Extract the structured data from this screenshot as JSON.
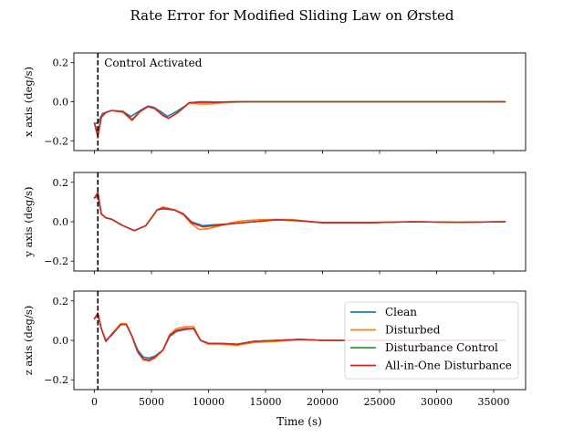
{
  "chart_data": {
    "title": "Rate Error for Modified Sliding Law on Ørsted",
    "type": "line",
    "xlabel": "Time (s)",
    "xlim": [
      -1800,
      37800
    ],
    "xticks": [
      0,
      5000,
      10000,
      15000,
      20000,
      25000,
      30000,
      35000
    ],
    "xtick_labels": [
      "0",
      "5000",
      "10000",
      "15000",
      "20000",
      "25000",
      "30000",
      "35000"
    ],
    "annotation": {
      "text": "Control Activated",
      "x": 300
    },
    "legend": {
      "location": "lower-right",
      "entries": [
        "Clean",
        "Disturbed",
        "Disturbance Control",
        "All-in-One Disturbance"
      ]
    },
    "colors": {
      "Clean": "#1f77b4",
      "Disturbed": "#ff7f0e",
      "Disturbance Control": "#2ca02c",
      "All-in-One Disturbance": "#d62728"
    },
    "subplots": [
      {
        "ylabel": "x axis (deg/s)",
        "ylim": [
          -0.25,
          0.25
        ],
        "yticks": [
          -0.2,
          0.0,
          0.2
        ],
        "ytick_labels": [
          "−0.2",
          "0.0",
          "0.2"
        ],
        "series": [
          {
            "name": "Clean",
            "x": [
              0,
              300,
              700,
              1500,
              2500,
              3200,
              4000,
              4700,
              5200,
              5800,
              6400,
              7200,
              8400,
              9200,
              10000,
              11000,
              12000,
              14000,
              18000,
              24000,
              30000,
              36000
            ],
            "y": [
              -0.11,
              -0.11,
              -0.06,
              -0.045,
              -0.05,
              -0.075,
              -0.045,
              -0.022,
              -0.028,
              -0.05,
              -0.075,
              -0.05,
              -0.005,
              0.0,
              0.0,
              -0.003,
              -0.002,
              0.0,
              0.0,
              0.0,
              0.0,
              0.0
            ]
          },
          {
            "name": "Disturbed",
            "x": [
              0,
              300,
              600,
              1000,
              1500,
              2500,
              3300,
              4000,
              4700,
              5300,
              6000,
              6500,
              7200,
              8300,
              9500,
              10500,
              11500,
              12500,
              14000,
              18000,
              24000,
              30000,
              36000
            ],
            "y": [
              -0.11,
              -0.16,
              -0.08,
              -0.055,
              -0.045,
              -0.055,
              -0.095,
              -0.05,
              -0.025,
              -0.035,
              -0.07,
              -0.085,
              -0.06,
              -0.008,
              -0.012,
              -0.01,
              -0.004,
              0.0,
              0.0,
              0.0,
              0.0,
              0.0,
              0.0
            ]
          },
          {
            "name": "Disturbance Control",
            "x": [
              0,
              300,
              600,
              1000,
              1500,
              2500,
              3300,
              4000,
              4700,
              5300,
              6000,
              6500,
              7200,
              8300,
              9500,
              10500,
              12000,
              14000,
              18000,
              24000,
              30000,
              36000
            ],
            "y": [
              -0.11,
              -0.17,
              -0.08,
              -0.055,
              -0.045,
              -0.05,
              -0.09,
              -0.05,
              -0.025,
              -0.035,
              -0.07,
              -0.085,
              -0.06,
              -0.005,
              -0.002,
              -0.003,
              0.0,
              0.0,
              0.0,
              0.0,
              0.0,
              0.0
            ]
          },
          {
            "name": "All-in-One Disturbance",
            "x": [
              0,
              300,
              600,
              1000,
              1500,
              2500,
              3300,
              4000,
              4700,
              5300,
              6000,
              6500,
              7200,
              8300,
              9500,
              10500,
              12000,
              14000,
              18000,
              24000,
              30000,
              36000
            ],
            "y": [
              -0.11,
              -0.18,
              -0.08,
              -0.055,
              -0.045,
              -0.05,
              -0.095,
              -0.05,
              -0.025,
              -0.035,
              -0.07,
              -0.085,
              -0.06,
              -0.005,
              -0.002,
              -0.003,
              0.0,
              0.0,
              0.0,
              0.0,
              0.0,
              0.0
            ]
          }
        ]
      },
      {
        "ylabel": "y axis (deg/s)",
        "ylim": [
          -0.25,
          0.25
        ],
        "yticks": [
          -0.2,
          0.0,
          0.2
        ],
        "ytick_labels": [
          "−0.2",
          "0.0",
          "0.2"
        ],
        "series": [
          {
            "name": "Clean",
            "x": [
              0,
              300,
              600,
              1000,
              1500,
              2500,
              3500,
              4500,
              5500,
              6000,
              7000,
              7800,
              8500,
              9500,
              10500,
              12000,
              14000,
              16000,
              18000,
              20000,
              24000,
              28000,
              32000,
              36000
            ],
            "y": [
              0.12,
              0.13,
              0.04,
              0.02,
              0.013,
              -0.02,
              -0.045,
              -0.02,
              0.06,
              0.065,
              0.06,
              0.04,
              0.0,
              -0.02,
              -0.015,
              -0.01,
              0.0,
              0.01,
              0.005,
              -0.005,
              -0.005,
              0.0,
              -0.003,
              0.0
            ]
          },
          {
            "name": "Disturbed",
            "x": [
              0,
              300,
              600,
              1000,
              1500,
              2500,
              3500,
              4500,
              5500,
              6000,
              7000,
              7800,
              8500,
              9200,
              10000,
              11000,
              12000,
              13000,
              14500,
              16000,
              17500,
              19000,
              20000,
              24000,
              28000,
              32000,
              36000
            ],
            "y": [
              0.12,
              0.14,
              0.04,
              0.02,
              0.013,
              -0.02,
              -0.045,
              -0.02,
              0.06,
              0.075,
              0.06,
              0.035,
              -0.01,
              -0.04,
              -0.035,
              -0.02,
              -0.005,
              0.005,
              0.01,
              0.012,
              0.01,
              0.0,
              -0.003,
              -0.003,
              0.0,
              -0.003,
              0.0
            ]
          },
          {
            "name": "Disturbance Control",
            "x": [
              0,
              300,
              600,
              1000,
              1500,
              2500,
              3500,
              4500,
              5500,
              6000,
              7000,
              7800,
              8500,
              9500,
              10500,
              12000,
              14000,
              16000,
              18000,
              20000,
              24000,
              28000,
              32000,
              36000
            ],
            "y": [
              0.12,
              0.145,
              0.04,
              0.02,
              0.013,
              -0.02,
              -0.045,
              -0.02,
              0.06,
              0.07,
              0.06,
              0.04,
              -0.005,
              -0.025,
              -0.02,
              -0.01,
              0.0,
              0.01,
              0.005,
              -0.005,
              -0.005,
              0.0,
              -0.003,
              0.0
            ]
          },
          {
            "name": "All-in-One Disturbance",
            "x": [
              0,
              300,
              600,
              1000,
              1500,
              2500,
              3500,
              4500,
              5500,
              6000,
              7000,
              7800,
              8500,
              9500,
              10500,
              12000,
              14000,
              16000,
              18000,
              20000,
              24000,
              28000,
              32000,
              36000
            ],
            "y": [
              0.12,
              0.15,
              0.04,
              0.02,
              0.013,
              -0.02,
              -0.045,
              -0.02,
              0.06,
              0.07,
              0.06,
              0.04,
              -0.005,
              -0.025,
              -0.02,
              -0.01,
              0.0,
              0.01,
              0.005,
              -0.005,
              -0.005,
              0.0,
              -0.003,
              0.0
            ]
          }
        ]
      },
      {
        "ylabel": "z axis (deg/s)",
        "ylim": [
          -0.25,
          0.25
        ],
        "yticks": [
          -0.2,
          0.0,
          0.2
        ],
        "ytick_labels": [
          "−0.2",
          "0.0",
          "0.2"
        ],
        "series": [
          {
            "name": "Clean",
            "x": [
              0,
              300,
              600,
              1000,
              1500,
              2300,
              2800,
              3300,
              3800,
              4300,
              4800,
              5300,
              6000,
              6600,
              7200,
              8000,
              8700,
              9300,
              10000,
              11000,
              12500,
              14000,
              16000,
              18000,
              20000,
              24000,
              28000,
              32000,
              36000
            ],
            "y": [
              0.11,
              0.13,
              0.06,
              0.0,
              0.025,
              0.08,
              0.08,
              0.02,
              -0.05,
              -0.085,
              -0.09,
              -0.08,
              -0.05,
              0.02,
              0.045,
              0.055,
              0.06,
              0.0,
              -0.015,
              -0.015,
              -0.02,
              -0.005,
              0.0,
              0.005,
              0.0,
              0.0,
              0.0,
              0.0,
              0.0
            ]
          },
          {
            "name": "Disturbed",
            "x": [
              0,
              300,
              600,
              1000,
              1500,
              2300,
              2800,
              3300,
              3800,
              4300,
              4800,
              5300,
              6000,
              6600,
              7200,
              8000,
              8700,
              9300,
              10000,
              11000,
              12500,
              14000,
              16000,
              18000,
              20000,
              24000,
              28000,
              32000,
              36000
            ],
            "y": [
              0.11,
              0.14,
              0.06,
              -0.005,
              0.03,
              0.085,
              0.085,
              0.02,
              -0.06,
              -0.1,
              -0.105,
              -0.09,
              -0.05,
              0.03,
              0.06,
              0.07,
              0.07,
              0.0,
              -0.02,
              -0.02,
              -0.025,
              -0.01,
              -0.005,
              0.003,
              0.0,
              0.0,
              0.0,
              0.0,
              0.0
            ]
          },
          {
            "name": "Disturbance Control",
            "x": [
              0,
              300,
              600,
              1000,
              1500,
              2300,
              2800,
              3300,
              3800,
              4300,
              4800,
              5300,
              6000,
              6600,
              7200,
              8000,
              8700,
              9300,
              10000,
              11000,
              12500,
              14000,
              16000,
              18000,
              20000,
              24000,
              28000,
              32000,
              36000
            ],
            "y": [
              0.11,
              0.13,
              0.06,
              -0.005,
              0.03,
              0.08,
              0.08,
              0.02,
              -0.06,
              -0.095,
              -0.1,
              -0.085,
              -0.05,
              0.025,
              0.05,
              0.06,
              0.06,
              0.0,
              -0.015,
              -0.015,
              -0.02,
              -0.005,
              0.0,
              0.005,
              0.0,
              0.0,
              0.0,
              0.0,
              0.0
            ]
          },
          {
            "name": "All-in-One Disturbance",
            "x": [
              0,
              300,
              600,
              1000,
              1500,
              2300,
              2800,
              3300,
              3800,
              4300,
              4800,
              5300,
              6000,
              6600,
              7200,
              8000,
              8700,
              9300,
              10000,
              11000,
              12500,
              14000,
              16000,
              18000,
              20000,
              24000,
              28000,
              32000,
              36000
            ],
            "y": [
              0.11,
              0.135,
              0.06,
              -0.005,
              0.03,
              0.08,
              0.08,
              0.02,
              -0.06,
              -0.095,
              -0.1,
              -0.085,
              -0.05,
              0.025,
              0.05,
              0.06,
              0.06,
              0.0,
              -0.015,
              -0.015,
              -0.02,
              -0.005,
              0.0,
              0.005,
              0.0,
              0.0,
              0.0,
              0.0,
              0.0
            ]
          }
        ]
      }
    ]
  }
}
